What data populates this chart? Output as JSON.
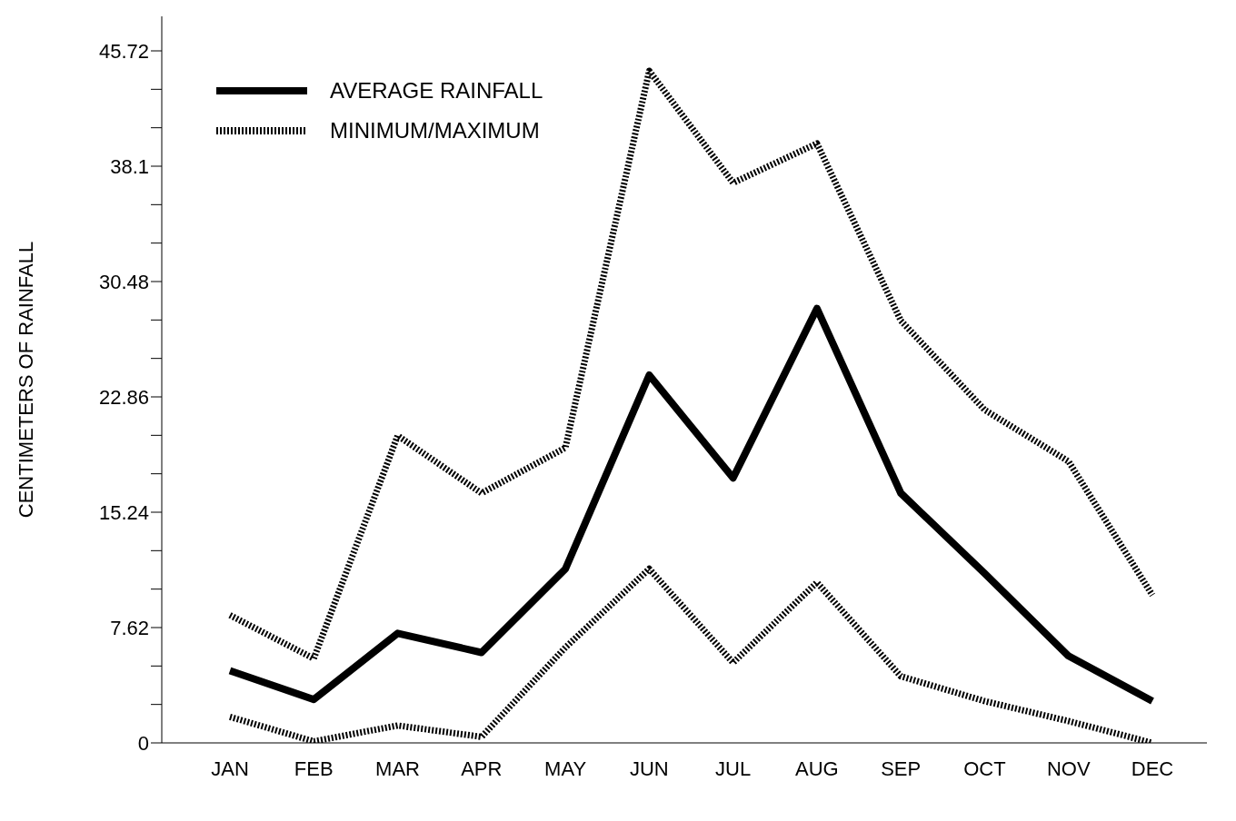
{
  "chart_data": {
    "type": "line",
    "ylabel": "CENTIMETERS OF RAINFALL",
    "categories": [
      "JAN",
      "FEB",
      "MAR",
      "APR",
      "MAY",
      "JUN",
      "JUL",
      "AUG",
      "SEP",
      "OCT",
      "NOV",
      "DEC"
    ],
    "series": [
      {
        "name": "AVERAGE RAINFALL",
        "color": "#000000",
        "line_style": "solid",
        "values": [
          4.77,
          2.87,
          7.24,
          5.97,
          11.49,
          24.3,
          17.5,
          28.7,
          16.5,
          11.2,
          5.74,
          2.76
        ]
      },
      {
        "name": "MINIMUM/MAXIMUM",
        "color": "#000000",
        "line_style": "dotted",
        "values": [
          8.44,
          5.57,
          20.3,
          16.5,
          19.5,
          44.4,
          37.0,
          39.6,
          27.9,
          22.0,
          18.6,
          9.76
        ]
      },
      {
        "color": "#000000",
        "line_style": "dotted",
        "values": [
          1.72,
          0.1,
          1.15,
          0.4,
          6.3,
          11.5,
          5.3,
          10.6,
          4.4,
          2.76,
          1.44,
          0
        ]
      }
    ],
    "ylim": [
      0,
      48
    ],
    "yticks": [
      0,
      {
        "value": 2.54,
        "label": null
      },
      {
        "value": 5.08,
        "label": null
      },
      7.62,
      {
        "value": 10.16,
        "label": null
      },
      {
        "value": 12.7,
        "label": null
      },
      15.24,
      {
        "value": 17.78,
        "label": null
      },
      {
        "value": 20.32,
        "label": null
      },
      22.86,
      {
        "value": 25.4,
        "label": null
      },
      {
        "value": 27.94,
        "label": null
      },
      30.48,
      {
        "value": 33.02,
        "label": null
      },
      {
        "value": 35.56,
        "label": null
      },
      38.1,
      {
        "value": 40.64,
        "label": null
      },
      {
        "value": 43.18,
        "label": null
      },
      45.72
    ],
    "grid": false,
    "legend": "top left",
    "marker": "none"
  }
}
